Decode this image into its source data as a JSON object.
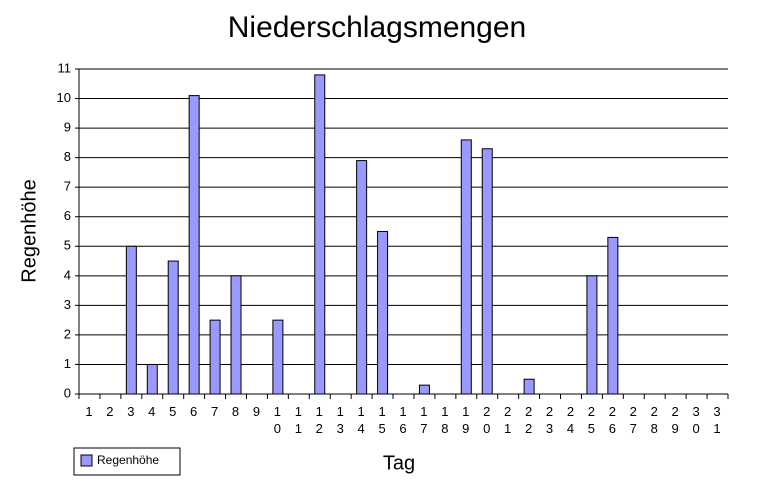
{
  "chart_data": {
    "type": "bar",
    "title": "Niederschlagsmengen",
    "x_label": "Tag",
    "y_label": "Regenhöhe",
    "categories": [
      "1",
      "2",
      "3",
      "4",
      "5",
      "6",
      "7",
      "8",
      "9",
      "10",
      "11",
      "12",
      "13",
      "14",
      "15",
      "16",
      "17",
      "18",
      "19",
      "20",
      "21",
      "22",
      "23",
      "24",
      "25",
      "26",
      "27",
      "28",
      "29",
      "30",
      "31"
    ],
    "series": [
      {
        "name": "Regenhöhe",
        "color": "#9999ff",
        "values": [
          0,
          0,
          5,
          1,
          4.5,
          10.1,
          2.5,
          4,
          0,
          2.5,
          0,
          10.8,
          0,
          7.9,
          5.5,
          0,
          0.3,
          0,
          8.6,
          8.3,
          0,
          0.5,
          0,
          0,
          4,
          5.3,
          0,
          0,
          0,
          0,
          0
        ]
      }
    ],
    "ylim": [
      0,
      11
    ],
    "yticks": [
      0,
      1,
      2,
      3,
      4,
      5,
      6,
      7,
      8,
      9,
      10,
      11
    ],
    "grid": true,
    "legend": "bottom-left"
  }
}
